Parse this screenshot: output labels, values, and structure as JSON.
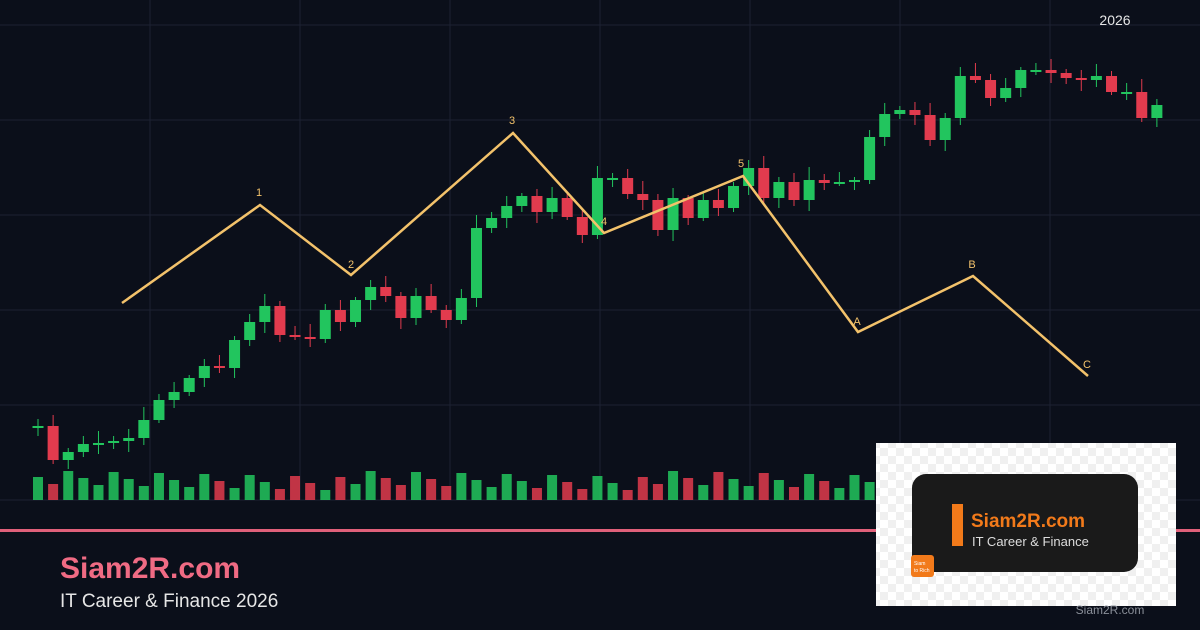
{
  "header_year": "2026",
  "waves": [
    "1",
    "2",
    "3",
    "4",
    "5",
    "A",
    "B",
    "C"
  ],
  "brand": {
    "title": "Siam2R.com",
    "subtitle": "IT Career & Finance 2026"
  },
  "logo": {
    "title": "Siam2R.com",
    "subtitle": "IT Career & Finance",
    "icon": [
      "Siam",
      "to Rich"
    ]
  },
  "watermark": "Siam2R.com"
}
